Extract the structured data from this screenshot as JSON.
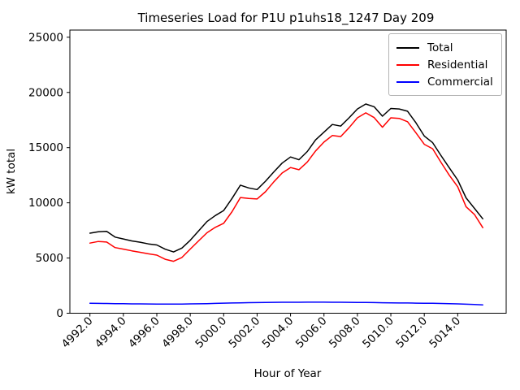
{
  "chart_data": {
    "type": "line",
    "title": "Timeseries Load for P1U p1uhs18_1247  Day 209",
    "xlabel": "Hour of Year",
    "ylabel": "kW total",
    "xlim": [
      4990.8,
      5016.9
    ],
    "ylim": [
      0,
      25650
    ],
    "xticks": [
      4992,
      4994,
      4996,
      4998,
      5000,
      5002,
      5004,
      5006,
      5008,
      5010,
      5012,
      5014
    ],
    "xtick_labels": [
      "4992.0",
      "4994.0",
      "4996.0",
      "4998.0",
      "5000.0",
      "5002.0",
      "5004.0",
      "5006.0",
      "5008.0",
      "5010.0",
      "5012.0",
      "5014.0"
    ],
    "xtick_rotation": 45,
    "yticks": [
      0,
      5000,
      10000,
      15000,
      20000,
      25000
    ],
    "ytick_labels": [
      "0",
      "5000",
      "10000",
      "15000",
      "20000",
      "25000"
    ],
    "grid": false,
    "legend_position": "upper right",
    "axis_color": "#000000",
    "background_color": "#ffffff",
    "x": [
      4992.0,
      4992.5,
      4993.0,
      4993.5,
      4994.0,
      4994.5,
      4995.0,
      4995.5,
      4996.0,
      4996.5,
      4997.0,
      4997.5,
      4998.0,
      4998.5,
      4999.0,
      4999.5,
      5000.0,
      5000.5,
      5001.0,
      5001.5,
      5002.0,
      5002.5,
      5003.0,
      5003.5,
      5004.0,
      5004.5,
      5005.0,
      5005.5,
      5006.0,
      5006.5,
      5007.0,
      5007.5,
      5008.0,
      5008.5,
      5009.0,
      5009.5,
      5010.0,
      5010.5,
      5011.0,
      5011.5,
      5012.0,
      5012.5,
      5013.0,
      5013.5,
      5014.0,
      5014.5,
      5015.0,
      5015.5
    ],
    "series": [
      {
        "name": "Total",
        "color": "#000000",
        "values": [
          7250,
          7380,
          7420,
          6900,
          6730,
          6550,
          6430,
          6280,
          6180,
          5800,
          5550,
          5900,
          6600,
          7450,
          8300,
          8850,
          9300,
          10400,
          11600,
          11350,
          11200,
          11950,
          12800,
          13600,
          14150,
          13900,
          14650,
          15700,
          16400,
          17100,
          16950,
          17700,
          18500,
          18950,
          18700,
          17850,
          18550,
          18500,
          18300,
          17250,
          16050,
          15450,
          14280,
          13170,
          12070,
          10450,
          9500,
          8550
        ]
      },
      {
        "name": "Residential",
        "color": "#ff0000",
        "values": [
          6350,
          6500,
          6450,
          5950,
          5810,
          5650,
          5520,
          5380,
          5260,
          4890,
          4700,
          5050,
          5810,
          6550,
          7290,
          7780,
          8150,
          9200,
          10480,
          10400,
          10350,
          11000,
          11900,
          12700,
          13200,
          13000,
          13700,
          14700,
          15500,
          16100,
          16000,
          16800,
          17700,
          18150,
          17720,
          16850,
          17700,
          17650,
          17350,
          16350,
          15300,
          14900,
          13660,
          12500,
          11460,
          9650,
          8950,
          7750
        ]
      },
      {
        "name": "Commercial",
        "color": "#0000ff",
        "values": [
          900,
          890,
          880,
          870,
          860,
          850,
          845,
          840,
          835,
          830,
          830,
          835,
          845,
          855,
          870,
          890,
          910,
          930,
          945,
          955,
          965,
          975,
          985,
          990,
          995,
          995,
          1000,
          1000,
          1000,
          995,
          990,
          985,
          980,
          975,
          965,
          950,
          940,
          930,
          925,
          915,
          905,
          895,
          880,
          865,
          845,
          820,
          790,
          760
        ]
      }
    ]
  }
}
